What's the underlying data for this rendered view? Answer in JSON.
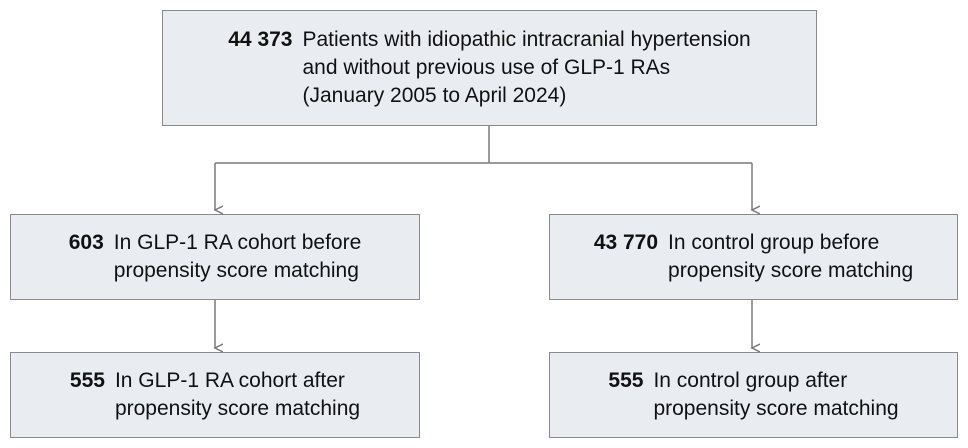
{
  "nodes": [
    {
      "count": "44 373",
      "lines": [
        "Patients with idiopathic intracranial hypertension",
        "and without previous use of GLP-1 RAs",
        "(January 2005 to April 2024)"
      ]
    },
    {
      "count": "603",
      "lines": [
        "In GLP-1 RA cohort before",
        "propensity score matching"
      ]
    },
    {
      "count": "43 770",
      "lines": [
        "In control group before",
        "propensity score matching"
      ]
    },
    {
      "count": "555",
      "lines": [
        "In GLP-1 RA cohort after",
        "propensity score matching"
      ]
    },
    {
      "count": "555",
      "lines": [
        "In control group after",
        "propensity score matching"
      ]
    }
  ]
}
